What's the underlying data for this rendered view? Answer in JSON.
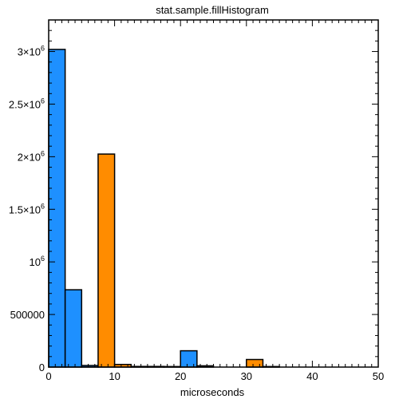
{
  "chart_data": {
    "type": "bar",
    "title": "stat.sample.fillHistogram",
    "xlabel": "microseconds",
    "ylabel": "",
    "xlim": [
      0,
      50
    ],
    "ylim": [
      0,
      3300000
    ],
    "bin_width": 2.5,
    "x_ticks": [
      {
        "value": 0,
        "label": "0"
      },
      {
        "value": 10,
        "label": "10"
      },
      {
        "value": 20,
        "label": "20"
      },
      {
        "value": 30,
        "label": "30"
      },
      {
        "value": 40,
        "label": "40"
      },
      {
        "value": 50,
        "label": "50"
      }
    ],
    "y_ticks": [
      {
        "value": 0,
        "label": "0"
      },
      {
        "value": 500000,
        "label": "500000"
      },
      {
        "value": 1000000,
        "base": "10",
        "exp": "6"
      },
      {
        "value": 1500000,
        "base": "1.5×10",
        "exp": "6"
      },
      {
        "value": 2000000,
        "base": "2×10",
        "exp": "6"
      },
      {
        "value": 2500000,
        "base": "2.5×10",
        "exp": "6"
      },
      {
        "value": 3000000,
        "base": "3×10",
        "exp": "6"
      }
    ],
    "series": [
      {
        "name": "blue",
        "color": "#1e90ff",
        "bins": [
          {
            "x0": 0,
            "value": 3020000
          },
          {
            "x0": 2.5,
            "value": 735000
          },
          {
            "x0": 5,
            "value": 15000
          },
          {
            "x0": 17.5,
            "value": 5000
          },
          {
            "x0": 20,
            "value": 155000
          },
          {
            "x0": 22.5,
            "value": 12000
          }
        ]
      },
      {
        "name": "orange",
        "color": "#ff8c00",
        "bins": [
          {
            "x0": 7.5,
            "value": 2025000
          },
          {
            "x0": 10,
            "value": 25000
          },
          {
            "x0": 12.5,
            "value": 6000
          },
          {
            "x0": 15,
            "value": 6000
          },
          {
            "x0": 30,
            "value": 72000
          },
          {
            "x0": 32.5,
            "value": 5000
          }
        ]
      }
    ]
  }
}
